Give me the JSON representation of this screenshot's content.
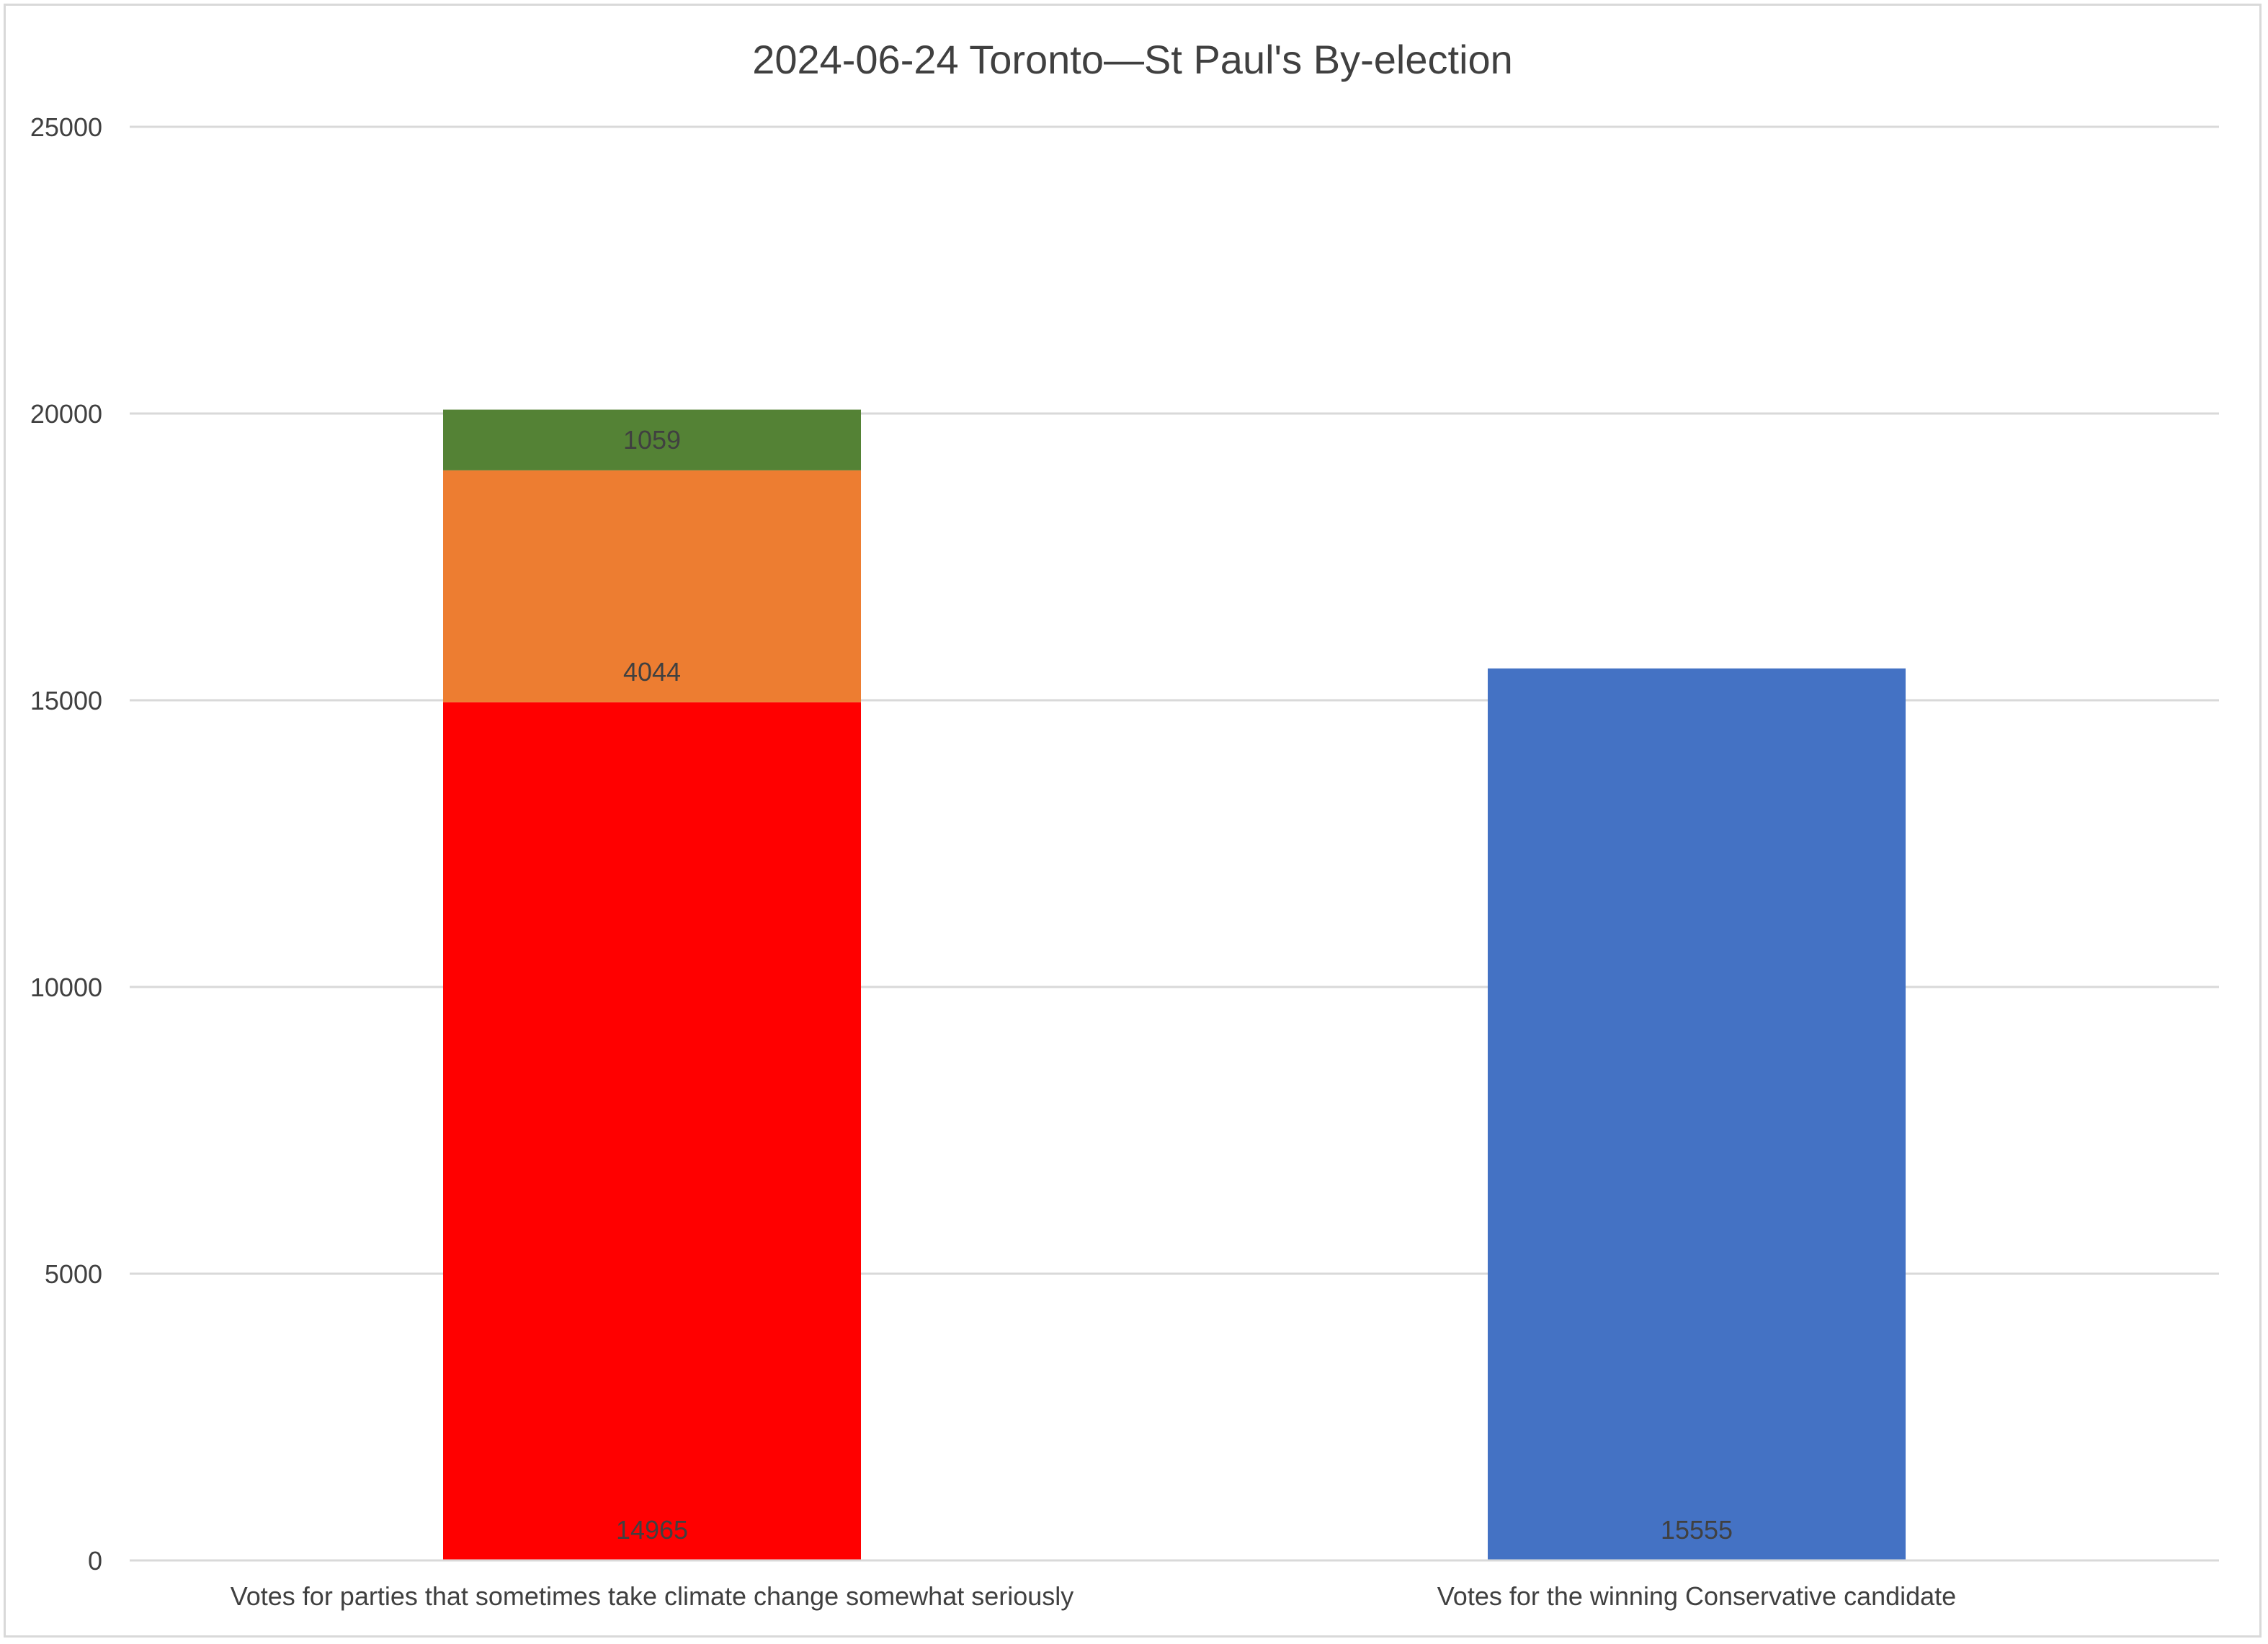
{
  "chart_data": {
    "type": "bar",
    "stacked": true,
    "title": "2024-06-24 Toronto—St Paul's By-election",
    "xlabel": "",
    "ylabel": "",
    "ylim": [
      0,
      25000
    ],
    "yticks": [
      "0",
      "5000",
      "10000",
      "15000",
      "20000",
      "25000"
    ],
    "grid": true,
    "legend": "none",
    "categories": [
      "Votes for parties that sometimes take climate change somewhat seriously",
      "Votes for the winning Conservative candidate"
    ],
    "series": [
      {
        "color": "#ff0000",
        "values": [
          14965,
          null
        ],
        "labels": [
          "14965",
          ""
        ]
      },
      {
        "color": "#ed7d31",
        "values": [
          4044,
          null
        ],
        "labels": [
          "4044",
          ""
        ]
      },
      {
        "color": "#548235",
        "values": [
          1059,
          null
        ],
        "labels": [
          "1059",
          ""
        ]
      },
      {
        "color": "#4472c4",
        "values": [
          null,
          15555
        ],
        "labels": [
          "",
          "15555"
        ]
      }
    ]
  }
}
